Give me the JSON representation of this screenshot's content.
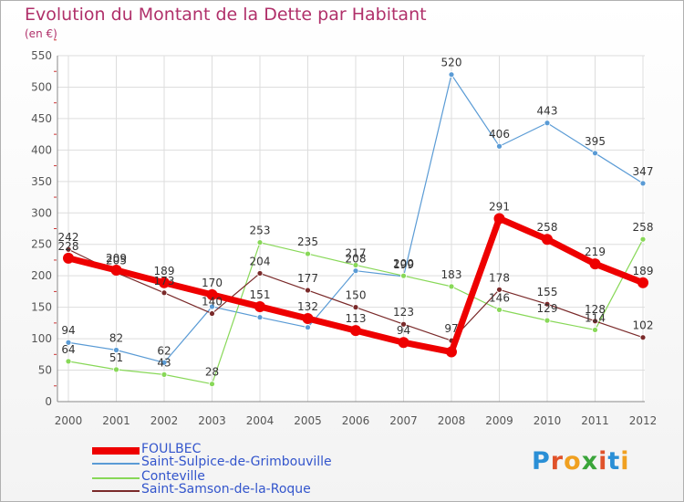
{
  "title": "Evolution du Montant de la Dette par Habitant",
  "subtitle": "(en €)",
  "logo_text": "Proxiti",
  "chart_data": {
    "type": "line",
    "title": "Evolution du Montant de la Dette par Habitant",
    "ylabel": "(en €)",
    "xlabel": "",
    "x": [
      "2000",
      "2001",
      "2002",
      "2003",
      "2004",
      "2005",
      "2006",
      "2007",
      "2008",
      "2009",
      "2010",
      "2011",
      "2012"
    ],
    "ylim": [
      0,
      550
    ],
    "yticks": [
      0,
      50,
      100,
      150,
      200,
      250,
      300,
      350,
      400,
      450,
      500,
      550
    ],
    "grid": true,
    "legend": "bottom-left",
    "series": [
      {
        "name": "FOULBEC",
        "color": "#ee0000",
        "values": [
          228,
          209,
          189,
          170,
          151,
          132,
          113,
          94,
          79,
          291,
          258,
          219,
          189
        ],
        "labels": [
          "228",
          "209",
          "189",
          "170",
          "151",
          "132",
          "113",
          "94",
          "",
          "291",
          "258",
          "219",
          "189"
        ]
      },
      {
        "name": "Saint-Sulpice-de-Grimbouville",
        "color": "#5a9bd5",
        "values": [
          94,
          82,
          62,
          151,
          134,
          118,
          208,
          199,
          520,
          406,
          443,
          395,
          347
        ],
        "labels": [
          "94",
          "82",
          "62",
          "",
          "",
          "",
          "208",
          "199",
          "520",
          "406",
          "443",
          "395",
          "347"
        ]
      },
      {
        "name": "Conteville",
        "color": "#88d858",
        "values": [
          64,
          51,
          43,
          28,
          253,
          235,
          217,
          200,
          183,
          146,
          129,
          114,
          258
        ],
        "labels": [
          "64",
          "51",
          "43",
          "28",
          "253",
          "235",
          "217",
          "200",
          "183",
          "146",
          "129",
          "114",
          "258"
        ]
      },
      {
        "name": "Saint-Samson-de-la-Roque",
        "color": "#7a2a2a",
        "values": [
          242,
          205,
          173,
          140,
          204,
          177,
          150,
          123,
          97,
          178,
          155,
          128,
          102
        ],
        "labels": [
          "242",
          "205",
          "173",
          "140",
          "204",
          "177",
          "150",
          "123",
          "97",
          "178",
          "155",
          "128",
          "102"
        ]
      }
    ]
  }
}
